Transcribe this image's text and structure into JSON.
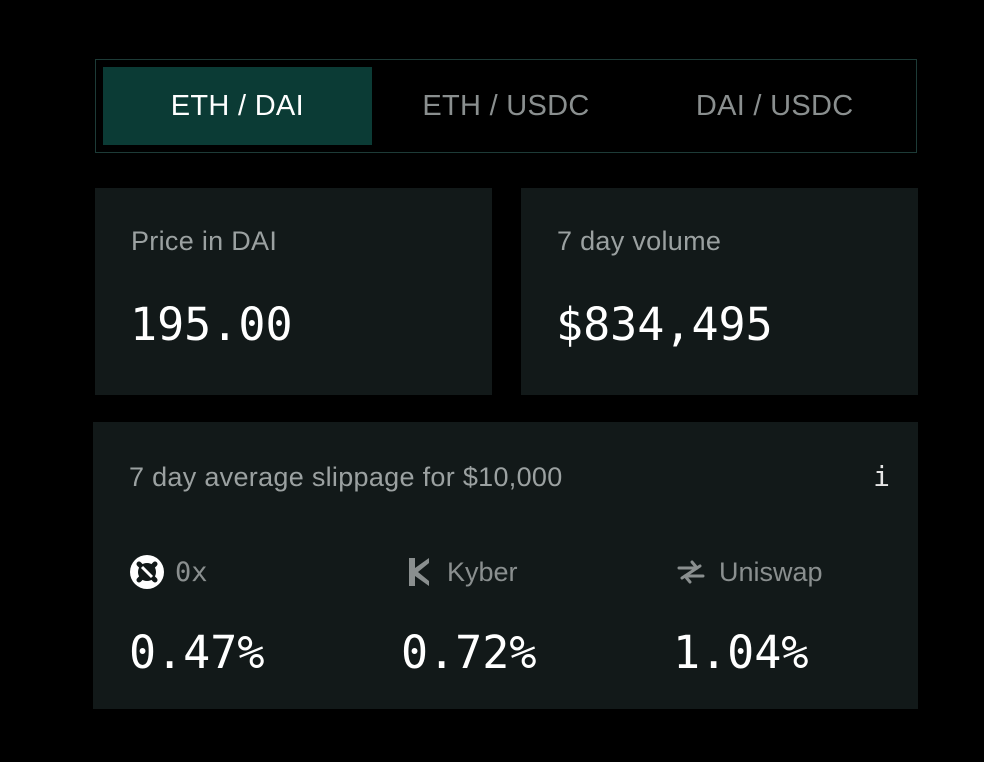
{
  "tabs": [
    {
      "label": "ETH / DAI",
      "active": true
    },
    {
      "label": "ETH / USDC",
      "active": false
    },
    {
      "label": "DAI / USDC",
      "active": false
    }
  ],
  "price_card": {
    "label": "Price in DAI",
    "value": "195.00"
  },
  "volume_card": {
    "label": "7 day volume",
    "value": "$834,495"
  },
  "slippage_card": {
    "label": "7 day average slippage for $10,000",
    "info_icon": "i",
    "dexes": [
      {
        "name": "0x",
        "icon": "zerox-logo-icon",
        "value": "0.47%"
      },
      {
        "name": "Kyber",
        "icon": "kyber-logo-icon",
        "value": "0.72%"
      },
      {
        "name": "Uniswap",
        "icon": "uniswap-logo-icon",
        "value": "1.04%"
      }
    ]
  },
  "colors": {
    "background": "#000000",
    "card": "#121919",
    "active_tab": "#0b3b35",
    "tab_border": "#1d3b37",
    "muted_text": "#9ba1a1"
  }
}
